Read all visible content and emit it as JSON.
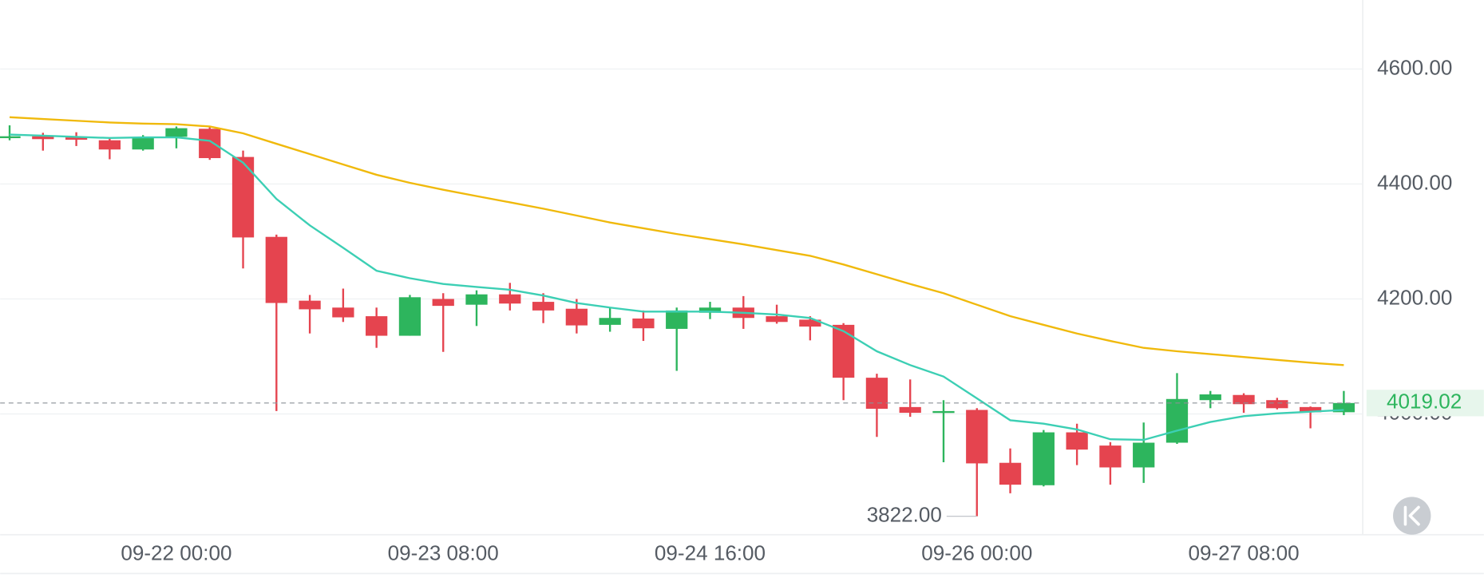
{
  "chart_data": {
    "type": "candlestick",
    "categories": [
      null,
      null,
      null,
      null,
      null,
      "09-22 00:00",
      null,
      null,
      null,
      null,
      null,
      null,
      null,
      "09-23 08:00",
      null,
      null,
      null,
      null,
      null,
      null,
      null,
      "09-24 16:00",
      null,
      null,
      null,
      null,
      null,
      null,
      null,
      "09-26 00:00",
      null,
      null,
      null,
      null,
      null,
      null,
      null,
      "09-27 08:00",
      null,
      null,
      null
    ],
    "open": [
      4480,
      4483,
      4481,
      4476,
      4460,
      4482,
      4496,
      4447,
      4308,
      4197,
      4185,
      4170,
      4136,
      4200,
      4190,
      4208,
      4195,
      4183,
      4155,
      4166,
      4148,
      4176,
      4185,
      4170,
      4164,
      4155,
      4063,
      4012,
      4003,
      4007,
      3915,
      3876,
      3968,
      3945,
      3907,
      3950,
      4024,
      4033,
      4024,
      4012,
      4003
    ],
    "high": [
      4502,
      4489,
      4490,
      4481,
      4485,
      4500,
      4500,
      4458,
      4312,
      4207,
      4218,
      4185,
      4207,
      4210,
      4215,
      4228,
      4210,
      4200,
      4185,
      4180,
      4185,
      4195,
      4205,
      4190,
      4170,
      4158,
      4070,
      4060,
      4024,
      4010,
      3940,
      3972,
      3983,
      3951,
      3985,
      4071,
      4040,
      4036,
      4028,
      4013,
      4040
    ],
    "low": [
      4476,
      4458,
      4466,
      4443,
      4458,
      4462,
      4442,
      4253,
      4005,
      4140,
      4160,
      4115,
      4136,
      4108,
      4153,
      4180,
      4158,
      4140,
      4143,
      4127,
      4075,
      4165,
      4148,
      4157,
      4128,
      4024,
      3960,
      3995,
      3916,
      3822,
      3862,
      3874,
      3911,
      3877,
      3880,
      3948,
      4010,
      4002,
      4008,
      3975,
      3998
    ],
    "close": [
      4483,
      4478,
      4477,
      4460,
      4482,
      4497,
      4445,
      4307,
      4193,
      4182,
      4168,
      4136,
      4203,
      4188,
      4208,
      4192,
      4180,
      4154,
      4167,
      4149,
      4180,
      4185,
      4167,
      4160,
      4152,
      4063,
      4009,
      4002,
      4005,
      3914,
      3877,
      3968,
      3938,
      3907,
      3950,
      4026,
      4034,
      4017,
      4010,
      4003,
      4019.02
    ],
    "up_color": "#2db55d",
    "down_color": "#e5444f",
    "moving_averages": [
      {
        "color": "#3ccfb4",
        "values": [
          4486,
          4484,
          4482,
          4480,
          4481,
          4481,
          4475,
          4437,
          4374,
          4328,
          4289,
          4249,
          4236,
          4226,
          4221,
          4216,
          4206,
          4193,
          4185,
          4178,
          4178,
          4178,
          4176,
          4173,
          4167,
          4144,
          4109,
          4085,
          4065,
          4027,
          3989,
          3983,
          3973,
          3956,
          3955,
          3971,
          3986,
          3996,
          4001,
          4004,
          4007
        ]
      },
      {
        "color": "#f0b90b",
        "values": [
          4516,
          4513,
          4510,
          4507,
          4505,
          4504,
          4500,
          4488,
          4470,
          4452,
          4434,
          4416,
          4402,
          4390,
          4379,
          4368,
          4357,
          4345,
          4333,
          4323,
          4313,
          4304,
          4295,
          4285,
          4275,
          4260,
          4243,
          4226,
          4210,
          4190,
          4170,
          4155,
          4140,
          4127,
          4115,
          4109,
          4104,
          4099,
          4094,
          4089,
          4085
        ]
      }
    ],
    "ylim": [
      3790,
      4720
    ],
    "yticks": [
      {
        "value": 4000,
        "label": "4000.00"
      },
      {
        "value": 4200,
        "label": "4200.00"
      },
      {
        "value": 4400,
        "label": "4400.00"
      },
      {
        "value": 4600,
        "label": "4600.00"
      }
    ],
    "grid": true,
    "last_price": {
      "value": 4019.02,
      "label": "4019.02"
    },
    "low_marker": {
      "value": 3822,
      "label": "3822.00"
    }
  }
}
